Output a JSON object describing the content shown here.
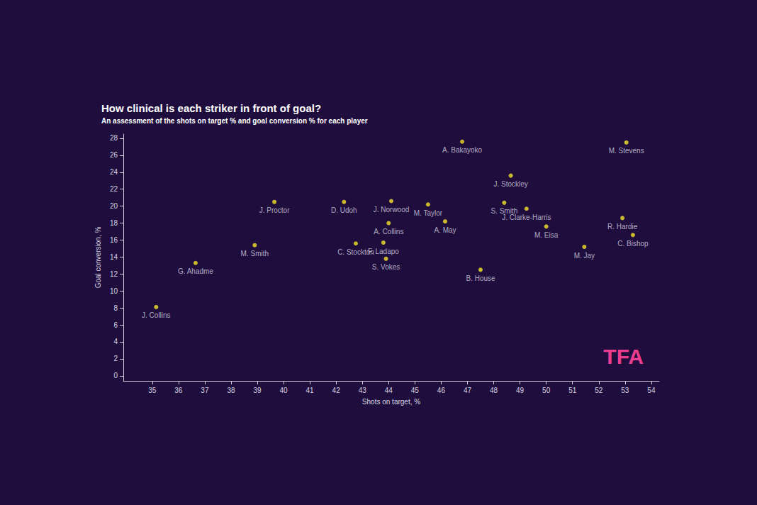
{
  "chart_data": {
    "type": "scatter",
    "title": "How clinical is each striker in front of goal?",
    "subtitle": "An assessment of the shots on target % and goal conversion % for each player",
    "x_label": "Shots on target, %",
    "y_label": "Goal conversion, %",
    "color": "#f5e52a",
    "grid": false,
    "annotations": [
      "TFA"
    ],
    "xlim": [
      33.9,
      54.3
    ],
    "xticks": [
      35,
      36,
      37,
      38,
      39,
      40,
      41,
      42,
      43,
      44,
      45,
      46,
      47,
      48,
      49,
      50,
      51,
      52,
      53,
      54
    ],
    "ylim": [
      -0.6,
      28.5
    ],
    "yticks": [
      0,
      2,
      4,
      6,
      8,
      10,
      12,
      14,
      16,
      18,
      20,
      22,
      24,
      26,
      28
    ],
    "points": [
      {
        "label": "J. Collins",
        "x": 35.15,
        "y": 8.1
      },
      {
        "label": "G. Ahadme",
        "x": 36.65,
        "y": 13.3
      },
      {
        "label": "M. Smith",
        "x": 38.9,
        "y": 15.4
      },
      {
        "label": "J. Proctor",
        "x": 39.65,
        "y": 20.5
      },
      {
        "label": "D. Udoh",
        "x": 42.3,
        "y": 20.5
      },
      {
        "label": "J. Norwood",
        "x": 44.1,
        "y": 20.6
      },
      {
        "label": "A. Collins",
        "x": 44.0,
        "y": 18.0
      },
      {
        "label": "C. Stockton",
        "x": 42.75,
        "y": 15.6
      },
      {
        "label": "F. Ladapo",
        "x": 43.8,
        "y": 15.7
      },
      {
        "label": "S. Vokes",
        "x": 43.9,
        "y": 13.8
      },
      {
        "label": "M. Taylor",
        "x": 45.5,
        "y": 20.2
      },
      {
        "label": "A. May",
        "x": 46.15,
        "y": 18.2
      },
      {
        "label": "A. Bakayoko",
        "x": 46.8,
        "y": 27.6
      },
      {
        "label": "B. House",
        "x": 47.5,
        "y": 12.5
      },
      {
        "label": "J. Stockley",
        "x": 48.65,
        "y": 23.6
      },
      {
        "label": "S. Smith",
        "x": 48.4,
        "y": 20.4
      },
      {
        "label": "J. Clarke-Harris",
        "x": 49.25,
        "y": 19.7
      },
      {
        "label": "M. Eisa",
        "x": 50.0,
        "y": 17.6
      },
      {
        "label": "M. Jay",
        "x": 51.45,
        "y": 15.2
      },
      {
        "label": "R. Hardie",
        "x": 52.9,
        "y": 18.6
      },
      {
        "label": "C. Bishop",
        "x": 53.3,
        "y": 16.6
      },
      {
        "label": "M. Stevens",
        "x": 53.05,
        "y": 27.5
      }
    ]
  }
}
